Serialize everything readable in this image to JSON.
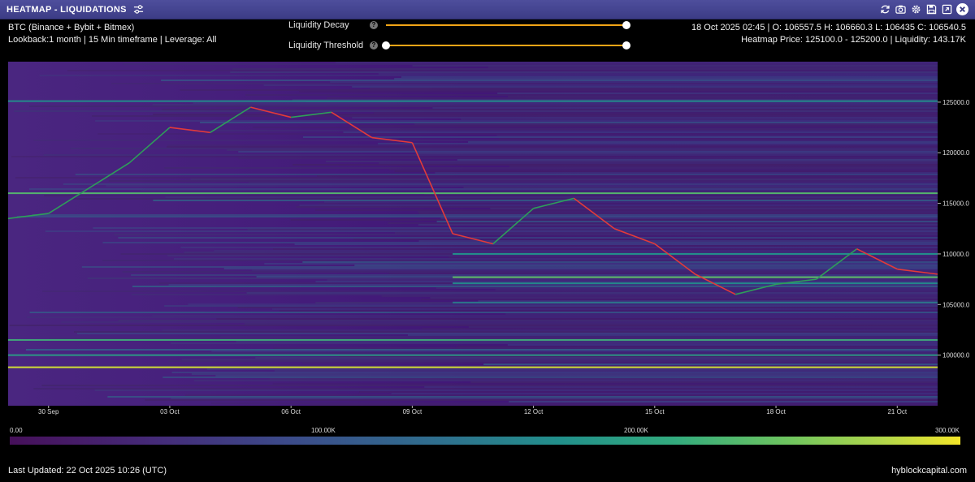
{
  "window": {
    "title": "HEATMAP - LIQUIDATIONS",
    "tool_icons": [
      "refresh-icon",
      "camera-icon",
      "gear-icon",
      "save-icon",
      "expand-icon",
      "close-icon"
    ]
  },
  "header": {
    "symbol_line": "BTC (Binance + Bybit + Bitmex)",
    "settings_line": "Lookback:1 month | 15 Min timeframe | Leverage: All",
    "ohlc_line": "18 Oct 2025 02:45 | O: 106557.5 H: 106660.3 L: 106435 C: 106540.5",
    "heatmap_line": "Heatmap Price: 125100.0 - 125200.0 | Liquidity: 143.17K"
  },
  "controls": {
    "liquidity_decay": {
      "label": "Liquidity Decay",
      "help": "?",
      "value": 1.0
    },
    "liquidity_threshold": {
      "label": "Liquidity Threshold",
      "help": "?",
      "range": [
        0.0,
        1.0
      ]
    }
  },
  "chart_data": {
    "type": "heatmap",
    "title": "",
    "xlabel": "",
    "ylabel": "",
    "x_ticks": [
      "30 Sep",
      "03 Oct",
      "06 Oct",
      "09 Oct",
      "12 Oct",
      "15 Oct",
      "18 Oct",
      "21 Oct"
    ],
    "y_ticks": [
      "125000.0",
      "120000.0",
      "115000.0",
      "110000.0",
      "105000.0",
      "100000.0"
    ],
    "ylim": [
      95000,
      129000
    ],
    "price_series": {
      "name": "",
      "times": [
        "2025-09-29",
        "2025-09-30",
        "2025-10-01",
        "2025-10-02",
        "2025-10-03",
        "2025-10-04",
        "2025-10-05",
        "2025-10-06",
        "2025-10-07",
        "2025-10-08",
        "2025-10-09",
        "2025-10-10",
        "2025-10-11",
        "2025-10-12",
        "2025-10-13",
        "2025-10-14",
        "2025-10-15",
        "2025-10-16",
        "2025-10-17",
        "2025-10-18",
        "2025-10-19",
        "2025-10-20",
        "2025-10-21",
        "2025-10-22"
      ],
      "close": [
        113500,
        114000,
        116500,
        119000,
        122500,
        122000,
        124500,
        123500,
        124000,
        121500,
        121000,
        112000,
        111000,
        114500,
        115500,
        112500,
        111000,
        108000,
        106000,
        107000,
        107500,
        110500,
        108500,
        108000
      ]
    },
    "liquidity_levels": [
      {
        "price": 125100,
        "liquidity": 143170
      },
      {
        "price": 116000,
        "liquidity": 200000
      },
      {
        "price": 110000,
        "liquidity": 150000
      },
      {
        "price": 107700,
        "liquidity": 210000
      },
      {
        "price": 107100,
        "liquidity": 140000
      },
      {
        "price": 105200,
        "liquidity": 120000
      },
      {
        "price": 101500,
        "liquidity": 180000
      },
      {
        "price": 100000,
        "liquidity": 160000
      },
      {
        "price": 98800,
        "liquidity": 280000
      }
    ],
    "colorbar": {
      "ticks": [
        "0.00",
        "100.00K",
        "200.00K",
        "300.00K"
      ],
      "range": [
        0,
        300000
      ],
      "colors": [
        "#46105a",
        "#3b4c8a",
        "#22908b",
        "#6fc55f",
        "#f4e629"
      ]
    },
    "colors": {
      "up": "#2e9e5a",
      "down": "#e23a3a",
      "background": "#44147a"
    }
  },
  "footer": {
    "last_updated": "Last Updated: 22 Oct 2025 10:26 (UTC)",
    "brand": "hyblockcapital.com"
  }
}
